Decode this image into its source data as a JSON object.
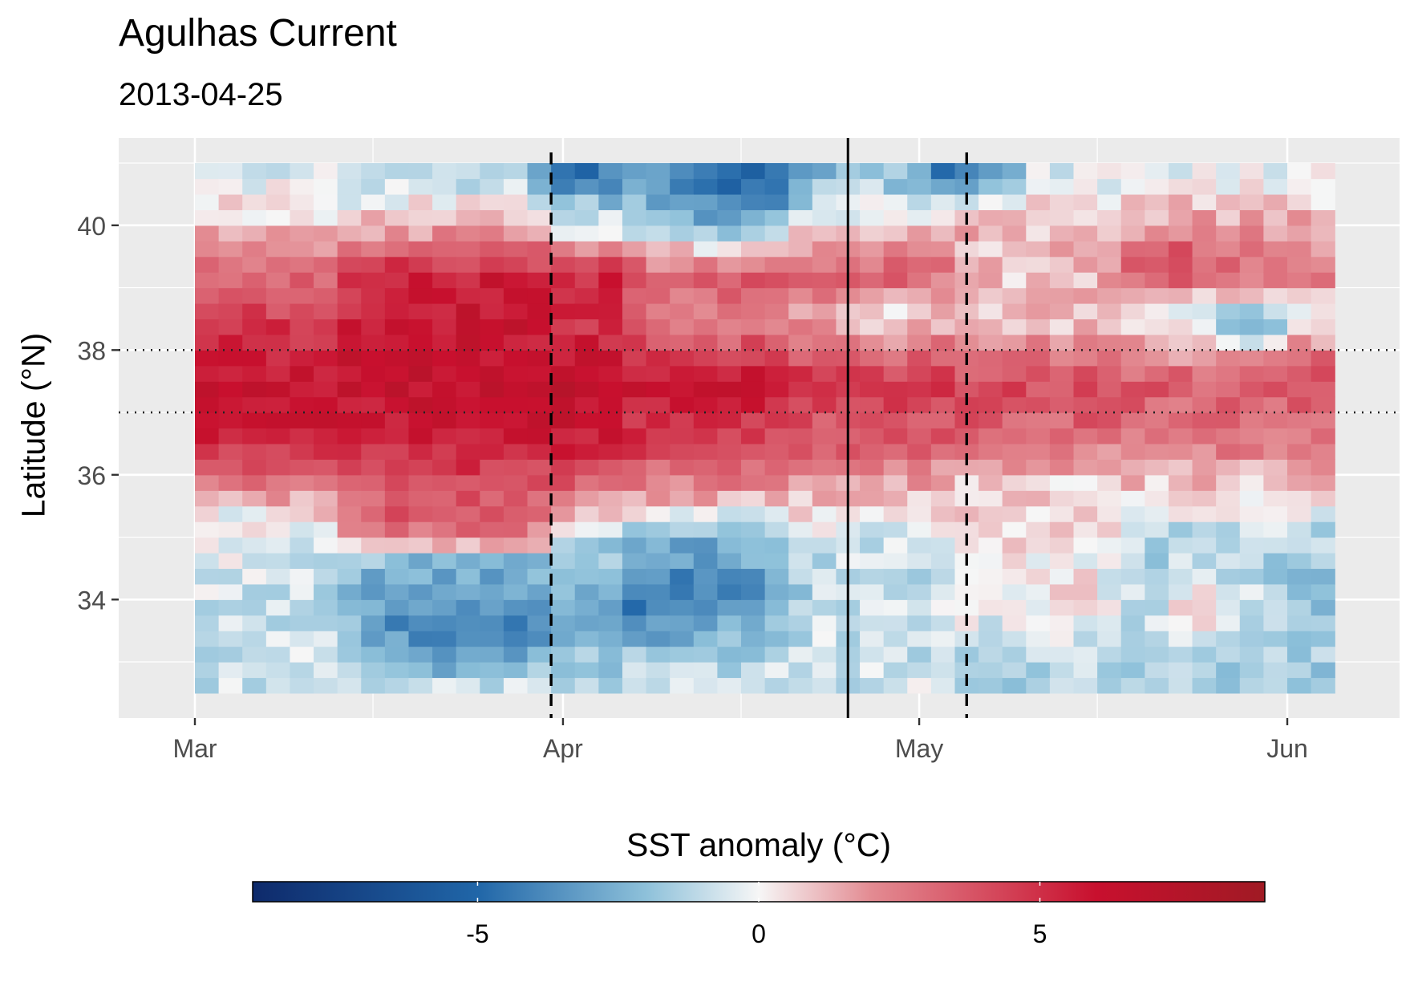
{
  "header": {
    "title": "Agulhas Current",
    "subtitle": "2013-04-25"
  },
  "chart_data": {
    "type": "heatmap",
    "title": "Agulhas Current",
    "subtitle": "2013-04-25",
    "xlabel": "",
    "ylabel": "Latitude (°N)",
    "x_range": [
      "2013-03-01",
      "2013-06-05"
    ],
    "x_ticks": [
      {
        "date": "2013-03-01",
        "label": "Mar"
      },
      {
        "date": "2013-04-01",
        "label": "Apr"
      },
      {
        "date": "2013-05-01",
        "label": "May"
      },
      {
        "date": "2013-06-01",
        "label": "Jun"
      }
    ],
    "x_minor_ticks": [
      "2013-03-16",
      "2013-04-16",
      "2013-05-16"
    ],
    "ylim": [
      32.1,
      41.4
    ],
    "y_ticks": [
      34,
      36,
      38,
      40
    ],
    "grid": true,
    "lat_range": [
      32.5,
      41.0
    ],
    "date_range": [
      "2013-03-01",
      "2013-06-05"
    ],
    "date_bin_days": 2,
    "lat_bin_deg": 0.25,
    "heat_profile": {
      "description": "SST anomaly (°C) by latitude band, per date segment",
      "segments": [
        {
          "start": "2013-03-01",
          "end": "2013-03-14",
          "bands": [
            {
              "lat": 40.8,
              "v": -0.6
            },
            {
              "lat": 40.0,
              "v": 0.8
            },
            {
              "lat": 39.2,
              "v": 3.0
            },
            {
              "lat": 38.5,
              "v": 4.5
            },
            {
              "lat": 37.5,
              "v": 6.2
            },
            {
              "lat": 36.5,
              "v": 5.2
            },
            {
              "lat": 35.8,
              "v": 2.2
            },
            {
              "lat": 35.3,
              "v": -0.2
            },
            {
              "lat": 34.0,
              "v": -0.8
            },
            {
              "lat": 32.6,
              "v": -0.8
            }
          ]
        },
        {
          "start": "2013-03-14",
          "end": "2013-03-31",
          "bands": [
            {
              "lat": 40.8,
              "v": -1.2
            },
            {
              "lat": 40.0,
              "v": 1.2
            },
            {
              "lat": 39.2,
              "v": 5.6
            },
            {
              "lat": 38.5,
              "v": 6.0
            },
            {
              "lat": 37.5,
              "v": 6.4
            },
            {
              "lat": 36.5,
              "v": 5.4
            },
            {
              "lat": 35.8,
              "v": 4.2
            },
            {
              "lat": 35.0,
              "v": 2.8
            },
            {
              "lat": 34.6,
              "v": -2.5
            },
            {
              "lat": 33.8,
              "v": -3.6
            },
            {
              "lat": 33.0,
              "v": -2.2
            },
            {
              "lat": 32.6,
              "v": -0.8
            }
          ]
        },
        {
          "start": "2013-03-31",
          "end": "2013-04-07",
          "bands": [
            {
              "lat": 40.8,
              "v": -3.2
            },
            {
              "lat": 40.0,
              "v": -0.6
            },
            {
              "lat": 39.2,
              "v": 5.2
            },
            {
              "lat": 38.5,
              "v": 4.8
            },
            {
              "lat": 37.5,
              "v": 6.6
            },
            {
              "lat": 36.5,
              "v": 5.6
            },
            {
              "lat": 35.8,
              "v": 3.0
            },
            {
              "lat": 35.0,
              "v": -1.2
            },
            {
              "lat": 34.0,
              "v": -2.2
            },
            {
              "lat": 32.6,
              "v": -1.6
            }
          ]
        },
        {
          "start": "2013-04-07",
          "end": "2013-04-20",
          "bands": [
            {
              "lat": 40.8,
              "v": -2.8
            },
            {
              "lat": 40.0,
              "v": -1.8
            },
            {
              "lat": 39.2,
              "v": 3.4
            },
            {
              "lat": 38.5,
              "v": 2.2
            },
            {
              "lat": 37.5,
              "v": 6.0
            },
            {
              "lat": 36.5,
              "v": 4.2
            },
            {
              "lat": 35.8,
              "v": 2.4
            },
            {
              "lat": 35.0,
              "v": -2.2
            },
            {
              "lat": 34.0,
              "v": -3.4
            },
            {
              "lat": 33.3,
              "v": -1.6
            },
            {
              "lat": 32.6,
              "v": -0.6
            }
          ]
        },
        {
          "start": "2013-04-20",
          "end": "2013-05-04",
          "bands": [
            {
              "lat": 40.8,
              "v": -1.8
            },
            {
              "lat": 40.0,
              "v": 0.6
            },
            {
              "lat": 39.2,
              "v": 3.4
            },
            {
              "lat": 38.5,
              "v": 1.6
            },
            {
              "lat": 37.5,
              "v": 4.6
            },
            {
              "lat": 36.5,
              "v": 3.6
            },
            {
              "lat": 35.8,
              "v": 1.6
            },
            {
              "lat": 35.0,
              "v": -0.8
            },
            {
              "lat": 34.0,
              "v": -1.0
            },
            {
              "lat": 32.6,
              "v": -0.7
            }
          ]
        },
        {
          "start": "2013-05-04",
          "end": "2013-05-18",
          "bands": [
            {
              "lat": 40.8,
              "v": -0.4
            },
            {
              "lat": 40.0,
              "v": 1.2
            },
            {
              "lat": 39.2,
              "v": 1.0
            },
            {
              "lat": 38.5,
              "v": 0.8
            },
            {
              "lat": 37.5,
              "v": 4.2
            },
            {
              "lat": 36.5,
              "v": 2.8
            },
            {
              "lat": 35.8,
              "v": 0.6
            },
            {
              "lat": 35.0,
              "v": 0.3
            },
            {
              "lat": 34.0,
              "v": 0.2
            },
            {
              "lat": 32.6,
              "v": -1.6
            }
          ]
        },
        {
          "start": "2013-05-18",
          "end": "2013-06-05",
          "bands": [
            {
              "lat": 40.8,
              "v": -0.2
            },
            {
              "lat": 40.0,
              "v": 1.6
            },
            {
              "lat": 39.2,
              "v": 2.6
            },
            {
              "lat": 38.5,
              "v": -0.5
            },
            {
              "lat": 37.5,
              "v": 3.6
            },
            {
              "lat": 36.5,
              "v": 2.6
            },
            {
              "lat": 35.8,
              "v": 0.8
            },
            {
              "lat": 35.0,
              "v": -1.4
            },
            {
              "lat": 34.0,
              "v": -1.8
            },
            {
              "lat": 32.6,
              "v": -1.6
            }
          ]
        }
      ]
    },
    "anomalies": [
      {
        "center": [
          "2013-04-16",
          40.6
        ],
        "radius": [
          6,
          0.5
        ],
        "delta": -2.5
      },
      {
        "center": [
          "2013-05-05",
          40.8
        ],
        "radius": [
          4,
          0.3
        ],
        "delta": -4.0
      },
      {
        "center": [
          "2013-04-02",
          40.8
        ],
        "radius": [
          3,
          0.3
        ],
        "delta": -2.0
      },
      {
        "center": [
          "2013-04-09",
          34.0
        ],
        "radius": [
          6,
          0.8
        ],
        "delta": -1.5
      },
      {
        "center": [
          "2013-03-24",
          33.3
        ],
        "radius": [
          5,
          0.5
        ],
        "delta": -1.2
      },
      {
        "center": [
          "2013-05-25",
          33.8
        ],
        "radius": [
          4,
          0.6
        ],
        "delta": 2.6
      },
      {
        "center": [
          "2013-05-29",
          38.3
        ],
        "radius": [
          4,
          0.4
        ],
        "delta": -2.0
      },
      {
        "center": [
          "2013-05-22",
          39.5
        ],
        "radius": [
          5,
          0.5
        ],
        "delta": 1.4
      },
      {
        "center": [
          "2013-06-03",
          37.9
        ],
        "radius": [
          2,
          0.4
        ],
        "delta": 2.0
      },
      {
        "center": [
          "2013-04-28",
          38.4
        ],
        "radius": [
          3,
          0.5
        ],
        "delta": -1.8
      }
    ],
    "reference_lines": {
      "horizontal_dotted": [
        37,
        38
      ],
      "vertical_solid": [
        "2013-04-25"
      ],
      "vertical_dashed": [
        "2013-03-31",
        "2013-05-05"
      ]
    },
    "colorbar": {
      "title": "SST anomaly (°C)",
      "range": [
        -9,
        9
      ],
      "ticks": [
        -5,
        0,
        5
      ],
      "tick_labels": [
        "-5",
        "0",
        "5"
      ],
      "colors": [
        "#0e2a6b",
        "#2066a8",
        "#8ec1da",
        "#f6f6f6",
        "#e38b92",
        "#c8102e",
        "#a01a24"
      ],
      "stops": [
        -9,
        -5,
        -2,
        0,
        2,
        6,
        9
      ]
    }
  }
}
